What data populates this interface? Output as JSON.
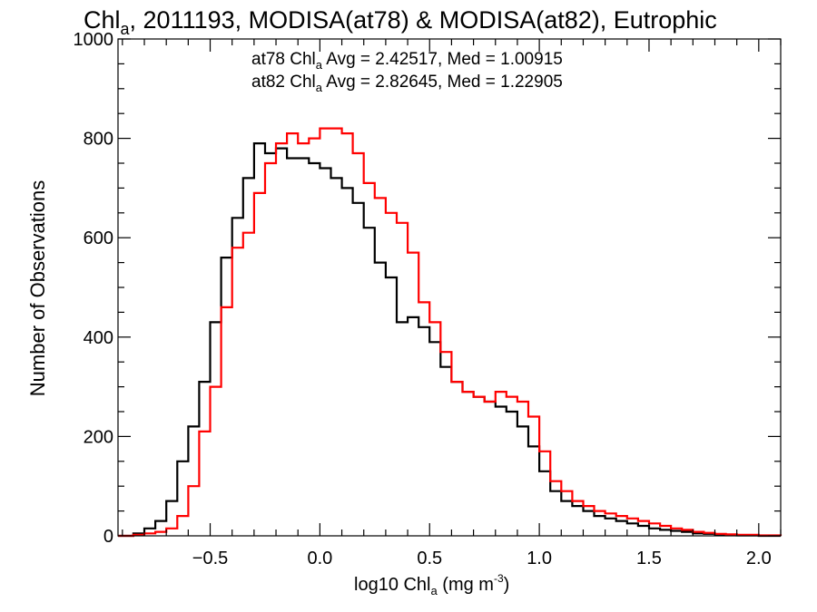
{
  "chart_data": {
    "type": "line",
    "step": true,
    "title": {
      "prefix": "Chl",
      "sub": "a",
      "rest": ", 2011193, MODISA(at78) & MODISA(at82), Eutrophic"
    },
    "xlabel": {
      "prefix": "log10 Chl",
      "sub": "a",
      "middle": " (mg m",
      "sup": "-3",
      "end": ")"
    },
    "ylabel": "Number of Observations",
    "xlim": [
      -0.92,
      2.1
    ],
    "ylim": [
      0,
      1000
    ],
    "x_ticks": [
      "-0.5",
      "0.0",
      "0.5",
      "1.0",
      "1.5",
      "2.0"
    ],
    "y_ticks": [
      "0",
      "200",
      "400",
      "600",
      "800",
      "1000"
    ],
    "grid": false,
    "legend": [
      {
        "prefix": "at78 Chl",
        "sub": "a",
        "rest": " Avg = 2.42517, Med = 1.00915",
        "color": "#000000"
      },
      {
        "prefix": "at82 Chl",
        "sub": "a",
        "rest": " Avg = 2.82645, Med = 1.22905",
        "color": "#ff0000"
      }
    ],
    "series": [
      {
        "color": "#000000",
        "x": [
          -0.92,
          -0.85,
          -0.8,
          -0.75,
          -0.7,
          -0.65,
          -0.6,
          -0.55,
          -0.5,
          -0.45,
          -0.4,
          -0.35,
          -0.3,
          -0.25,
          -0.2,
          -0.15,
          -0.1,
          -0.05,
          0.0,
          0.05,
          0.1,
          0.15,
          0.2,
          0.25,
          0.3,
          0.35,
          0.4,
          0.45,
          0.5,
          0.55,
          0.6,
          0.65,
          0.7,
          0.75,
          0.8,
          0.85,
          0.9,
          0.95,
          1.0,
          1.05,
          1.1,
          1.15,
          1.2,
          1.25,
          1.3,
          1.35,
          1.4,
          1.45,
          1.5,
          1.55,
          1.6,
          1.65,
          1.7,
          1.75,
          1.8,
          1.85,
          1.9,
          2.0,
          2.1
        ],
        "y": [
          0,
          5,
          15,
          30,
          70,
          150,
          220,
          310,
          430,
          560,
          640,
          720,
          790,
          770,
          780,
          760,
          760,
          750,
          740,
          720,
          700,
          670,
          620,
          550,
          520,
          430,
          440,
          420,
          390,
          340,
          310,
          290,
          280,
          270,
          260,
          250,
          220,
          180,
          130,
          90,
          70,
          60,
          50,
          40,
          35,
          30,
          25,
          20,
          15,
          12,
          10,
          8,
          5,
          4,
          3,
          2,
          1,
          0,
          0
        ]
      },
      {
        "color": "#ff0000",
        "x": [
          -0.92,
          -0.85,
          -0.8,
          -0.75,
          -0.7,
          -0.65,
          -0.6,
          -0.55,
          -0.5,
          -0.45,
          -0.4,
          -0.35,
          -0.3,
          -0.25,
          -0.2,
          -0.15,
          -0.1,
          -0.05,
          0.0,
          0.05,
          0.1,
          0.15,
          0.2,
          0.25,
          0.3,
          0.35,
          0.4,
          0.45,
          0.5,
          0.55,
          0.6,
          0.65,
          0.7,
          0.75,
          0.8,
          0.85,
          0.9,
          0.95,
          1.0,
          1.05,
          1.1,
          1.15,
          1.2,
          1.25,
          1.3,
          1.35,
          1.4,
          1.45,
          1.5,
          1.55,
          1.6,
          1.65,
          1.7,
          1.75,
          1.8,
          1.85,
          1.9,
          2.0,
          2.1
        ],
        "y": [
          0,
          2,
          5,
          8,
          15,
          40,
          100,
          210,
          300,
          460,
          580,
          610,
          690,
          750,
          790,
          810,
          790,
          800,
          820,
          820,
          810,
          770,
          710,
          680,
          650,
          630,
          570,
          470,
          430,
          370,
          310,
          290,
          280,
          270,
          290,
          280,
          270,
          240,
          170,
          110,
          90,
          70,
          60,
          50,
          45,
          40,
          35,
          30,
          25,
          20,
          15,
          12,
          8,
          6,
          4,
          3,
          2,
          1,
          0
        ]
      }
    ]
  }
}
